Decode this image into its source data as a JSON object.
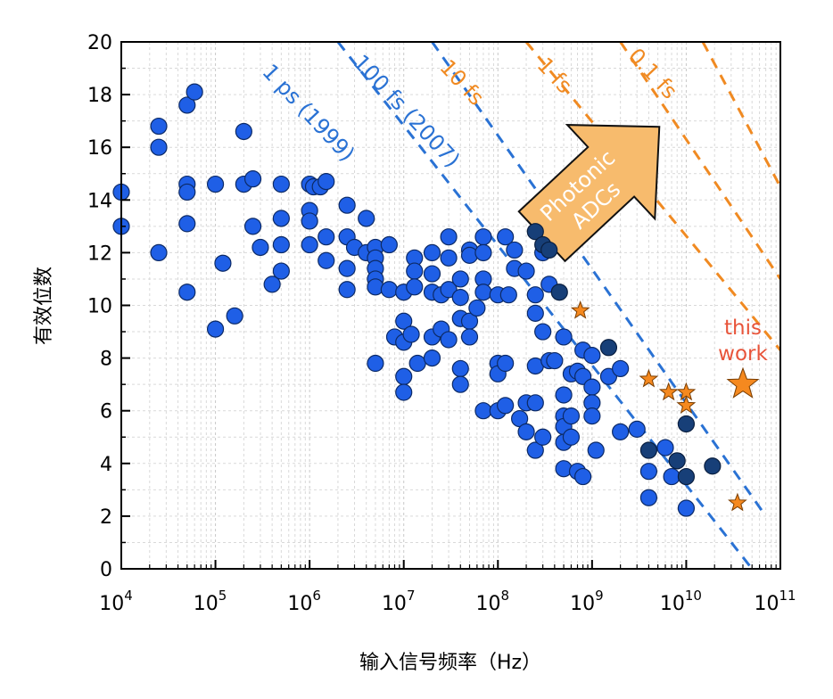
{
  "chart_data": {
    "type": "scatter",
    "xlabel": "输入信号频率（Hz）",
    "ylabel": "有效位数",
    "xscale": "log",
    "xlim": [
      10000,
      100000000000
    ],
    "ylim": [
      0,
      20
    ],
    "x_tick_labels": [
      {
        "base": "10",
        "exp": "4"
      },
      {
        "base": "10",
        "exp": "5"
      },
      {
        "base": "10",
        "exp": "6"
      },
      {
        "base": "10",
        "exp": "7"
      },
      {
        "base": "10",
        "exp": "8"
      },
      {
        "base": "10",
        "exp": "9"
      },
      {
        "base": "10",
        "exp": "10"
      },
      {
        "base": "10",
        "exp": "11"
      }
    ],
    "y_ticks": [
      "0",
      "2",
      "4",
      "6",
      "8",
      "10",
      "12",
      "14",
      "16",
      "18",
      "20"
    ],
    "grid": true,
    "colors": {
      "electronic": "#1f5fe6",
      "electronic_dark": "#173f78",
      "photonic_star": "#f5891f",
      "jitter_blue": "#2a72d4",
      "jitter_orange": "#f08a22",
      "arrow_fill": "#f7bb6d",
      "annotation_red": "#e8543a"
    },
    "jitter_lines": [
      {
        "label": "1 ps (1999)",
        "color": "blue",
        "points": [
          [
            2000000,
            20
          ],
          [
            50000000000,
            0
          ]
        ]
      },
      {
        "label": "100 fs (2007)",
        "color": "blue",
        "points": [
          [
            20000000,
            20
          ],
          [
            70000000000,
            2
          ]
        ]
      },
      {
        "label": "10 fs",
        "color": "orange",
        "points": [
          [
            200000000,
            20
          ],
          [
            100000000000,
            8.3
          ]
        ]
      },
      {
        "label": "1 fs",
        "color": "orange",
        "points": [
          [
            2000000000,
            20
          ],
          [
            100000000000,
            11
          ]
        ]
      },
      {
        "label": "0.1 fs",
        "color": "orange",
        "points": [
          [
            15000000000,
            20
          ],
          [
            100000000000,
            14.5
          ]
        ]
      }
    ],
    "arrow_label": [
      "Photonic",
      "ADCs"
    ],
    "annotation": [
      "this",
      "work"
    ],
    "series": [
      {
        "name": "",
        "style": "electronic",
        "points": [
          [
            10000,
            14.3
          ],
          [
            10000,
            13.0
          ],
          [
            25000,
            16.8
          ],
          [
            25000,
            16.0
          ],
          [
            25000,
            12.0
          ],
          [
            50000,
            17.6
          ],
          [
            50000,
            14.6
          ],
          [
            50000,
            14.3
          ],
          [
            50000,
            13.1
          ],
          [
            50000,
            10.5
          ],
          [
            60000,
            18.1
          ],
          [
            100000,
            14.6
          ],
          [
            100000,
            9.1
          ],
          [
            120000,
            11.6
          ],
          [
            160000,
            9.6
          ],
          [
            200000,
            16.6
          ],
          [
            200000,
            14.6
          ],
          [
            250000,
            14.8
          ],
          [
            250000,
            13.0
          ],
          [
            300000,
            12.2
          ],
          [
            400000,
            10.8
          ],
          [
            500000,
            14.6
          ],
          [
            500000,
            13.3
          ],
          [
            500000,
            12.3
          ],
          [
            500000,
            11.3
          ],
          [
            1000000,
            14.6
          ],
          [
            1000000,
            13.6
          ],
          [
            1000000,
            13.2
          ],
          [
            1000000,
            12.3
          ],
          [
            1100000,
            14.5
          ],
          [
            1300000,
            14.5
          ],
          [
            1500000,
            14.7
          ],
          [
            1500000,
            12.6
          ],
          [
            1500000,
            11.7
          ],
          [
            2500000,
            13.8
          ],
          [
            2500000,
            12.6
          ],
          [
            2500000,
            11.4
          ],
          [
            2500000,
            10.6
          ],
          [
            3000000,
            12.2
          ],
          [
            4000000,
            13.3
          ],
          [
            4000000,
            12.0
          ],
          [
            5000000,
            12.2
          ],
          [
            5000000,
            11.8
          ],
          [
            5000000,
            11.4
          ],
          [
            5000000,
            11.0
          ],
          [
            5000000,
            10.7
          ],
          [
            5000000,
            7.8
          ],
          [
            7000000,
            12.3
          ],
          [
            7000000,
            10.6
          ],
          [
            8000000,
            8.8
          ],
          [
            10000000,
            10.5
          ],
          [
            10000000,
            9.4
          ],
          [
            10000000,
            8.6
          ],
          [
            10000000,
            7.3
          ],
          [
            10000000,
            6.7
          ],
          [
            12000000,
            8.9
          ],
          [
            13000000,
            11.8
          ],
          [
            13000000,
            11.3
          ],
          [
            13000000,
            10.7
          ],
          [
            14000000,
            7.8
          ],
          [
            20000000,
            12.0
          ],
          [
            20000000,
            11.2
          ],
          [
            20000000,
            10.5
          ],
          [
            20000000,
            8.8
          ],
          [
            20000000,
            8.0
          ],
          [
            25000000,
            10.4
          ],
          [
            25000000,
            9.1
          ],
          [
            30000000,
            12.6
          ],
          [
            30000000,
            11.8
          ],
          [
            30000000,
            10.6
          ],
          [
            30000000,
            8.7
          ],
          [
            40000000,
            11.0
          ],
          [
            40000000,
            10.3
          ],
          [
            40000000,
            9.5
          ],
          [
            40000000,
            7.6
          ],
          [
            40000000,
            7.0
          ],
          [
            50000000,
            12.1
          ],
          [
            50000000,
            11.9
          ],
          [
            50000000,
            9.4
          ],
          [
            50000000,
            8.8
          ],
          [
            60000000,
            9.9
          ],
          [
            70000000,
            12.6
          ],
          [
            70000000,
            12.0
          ],
          [
            70000000,
            11.0
          ],
          [
            70000000,
            10.5
          ],
          [
            70000000,
            6.0
          ],
          [
            100000000,
            10.4
          ],
          [
            100000000,
            7.8
          ],
          [
            100000000,
            7.4
          ],
          [
            100000000,
            6.0
          ],
          [
            120000000,
            12.6
          ],
          [
            120000000,
            7.8
          ],
          [
            120000000,
            6.2
          ],
          [
            130000000,
            10.4
          ],
          [
            150000000,
            11.4
          ],
          [
            150000000,
            12.1
          ],
          [
            170000000,
            5.7
          ],
          [
            200000000,
            11.3
          ],
          [
            200000000,
            6.3
          ],
          [
            200000000,
            5.2
          ],
          [
            250000000,
            10.4
          ],
          [
            250000000,
            9.7
          ],
          [
            250000000,
            7.7
          ],
          [
            250000000,
            6.3
          ],
          [
            250000000,
            4.5
          ],
          [
            300000000,
            12.0
          ],
          [
            300000000,
            9.0
          ],
          [
            300000000,
            5.0
          ],
          [
            350000000,
            10.8
          ],
          [
            350000000,
            7.9
          ],
          [
            400000000,
            7.9
          ],
          [
            500000000,
            8.8
          ],
          [
            500000000,
            6.6
          ],
          [
            500000000,
            5.8
          ],
          [
            500000000,
            5.4
          ],
          [
            500000000,
            4.8
          ],
          [
            500000000,
            3.8
          ],
          [
            600000000,
            7.4
          ],
          [
            600000000,
            5.8
          ],
          [
            600000000,
            5.0
          ],
          [
            700000000,
            7.5
          ],
          [
            700000000,
            3.7
          ],
          [
            800000000,
            8.3
          ],
          [
            800000000,
            7.3
          ],
          [
            800000000,
            3.5
          ],
          [
            1000000000,
            8.1
          ],
          [
            1000000000,
            6.9
          ],
          [
            1000000000,
            6.3
          ],
          [
            1000000000,
            5.8
          ],
          [
            1100000000,
            4.5
          ],
          [
            1500000000,
            7.3
          ],
          [
            2000000000,
            7.6
          ],
          [
            2000000000,
            5.2
          ],
          [
            3000000000,
            5.3
          ],
          [
            4000000000,
            3.7
          ],
          [
            4000000000,
            2.7
          ],
          [
            6000000000,
            4.6
          ],
          [
            7000000000,
            3.5
          ],
          [
            10000000000,
            2.3
          ]
        ]
      },
      {
        "name": "",
        "style": "electronic_dark",
        "points": [
          [
            250000000,
            12.8
          ],
          [
            300000000,
            12.3
          ],
          [
            350000000,
            12.1
          ],
          [
            450000000,
            10.5
          ],
          [
            1500000000,
            8.4
          ],
          [
            4000000000,
            4.5
          ],
          [
            8000000000,
            4.1
          ],
          [
            10000000000,
            5.5
          ],
          [
            10000000000,
            3.5
          ],
          [
            19000000000,
            3.9
          ]
        ]
      },
      {
        "name": "",
        "style": "photonic_star",
        "points": [
          [
            750000000,
            9.8
          ],
          [
            4000000000,
            7.2
          ],
          [
            6500000000,
            6.7
          ],
          [
            10000000000,
            6.7
          ],
          [
            10000000000,
            6.2
          ],
          [
            35000000000,
            2.5
          ]
        ]
      },
      {
        "name": "",
        "style": "this_work",
        "points": [
          [
            40000000000,
            7.0
          ]
        ]
      }
    ]
  }
}
